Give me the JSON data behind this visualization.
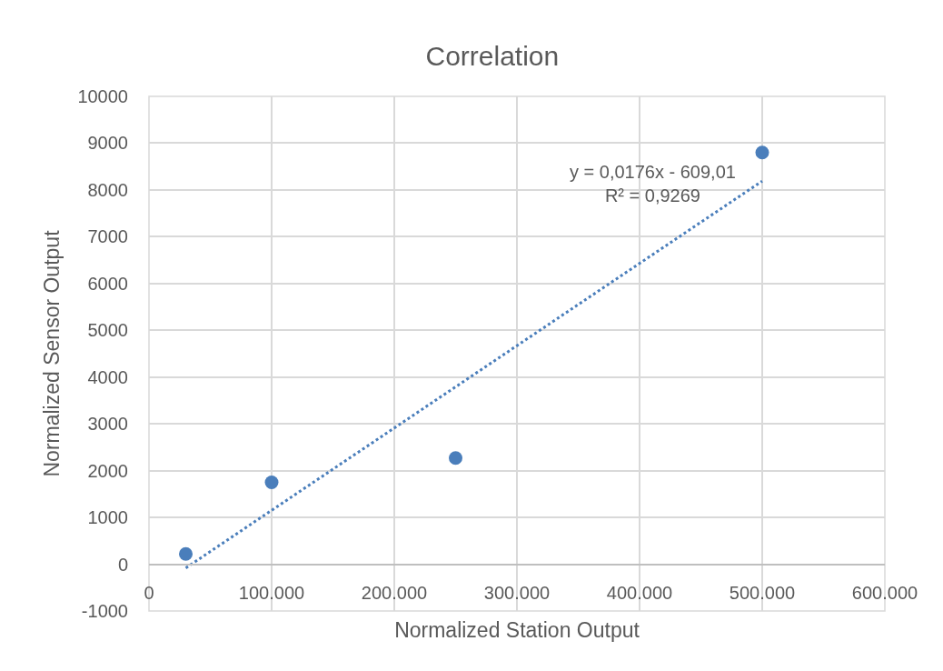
{
  "chart_data": {
    "type": "scatter",
    "title": "Correlation",
    "xlabel": "Normalized Station Output",
    "ylabel": "Normalized Sensor Output",
    "series": [
      {
        "color": "#4a7ebb",
        "x": [
          30000,
          100000,
          250000,
          500000
        ],
        "values": [
          220,
          1750,
          2270,
          8800
        ],
        "marker": "circle"
      },
      {
        "type": "line",
        "color": "#4a7ebb",
        "x": [
          30000,
          500000
        ],
        "values": [
          -80,
          8190
        ],
        "marker": "none",
        "line_style": "dotted"
      }
    ],
    "xlim": [
      0,
      600000
    ],
    "xticks": [
      0,
      {
        "value": 100000,
        "label": "100.000"
      },
      {
        "value": 200000,
        "label": "200.000"
      },
      {
        "value": 300000,
        "label": "300.000"
      },
      {
        "value": 400000,
        "label": "400.000"
      },
      {
        "value": 500000,
        "label": "500.000"
      },
      {
        "value": 600000,
        "label": "600.000"
      }
    ],
    "ylim": [
      -1000,
      10000
    ],
    "yticks": [
      -1000,
      0,
      1000,
      2000,
      3000,
      4000,
      5000,
      6000,
      7000,
      8000,
      9000,
      10000
    ],
    "grid": true,
    "annotations": [
      "y = 0,0176x - 609,01\nR² = 0,9269"
    ]
  }
}
